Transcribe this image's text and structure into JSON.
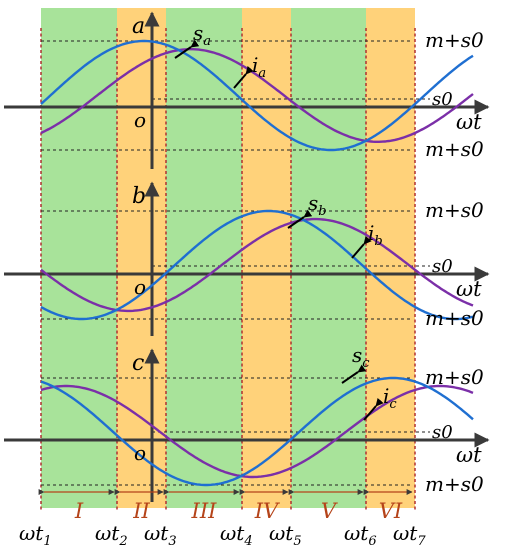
{
  "colors": {
    "green_band": "#a8e39a",
    "orange_band": "#ffd27a",
    "voltage_curve": "#1f6fd1",
    "current_curve": "#7b2fa8",
    "divider_line": "#b03030",
    "axis": "#3a3a3a",
    "roman_label": "#b5441a"
  },
  "panels": [
    {
      "axis_label": "a",
      "origin_label": "o",
      "x_axis_label": "ωt",
      "voltage_label": "s",
      "voltage_subscript": "a",
      "current_label": "i",
      "current_subscript": "a",
      "upper_level_label": "m+s0",
      "offset_label": "s0",
      "lower_level_label": "m+s0"
    },
    {
      "axis_label": "b",
      "origin_label": "o",
      "x_axis_label": "ωt",
      "voltage_label": "s",
      "voltage_subscript": "b",
      "current_label": "i",
      "current_subscript": "b",
      "upper_level_label": "m+s0",
      "offset_label": "s0",
      "lower_level_label": "m+s0"
    },
    {
      "axis_label": "c",
      "origin_label": "o",
      "x_axis_label": "ωt",
      "voltage_label": "s",
      "voltage_subscript": "c",
      "current_label": "i",
      "current_subscript": "c",
      "upper_level_label": "m+s0",
      "offset_label": "s0",
      "lower_level_label": "m+s0"
    }
  ],
  "sectors": [
    "I",
    "II",
    "III",
    "IV",
    "V",
    "VI"
  ],
  "time_marks": [
    {
      "base": "ωt",
      "sub": "1"
    },
    {
      "base": "ωt",
      "sub": "2"
    },
    {
      "base": "ωt",
      "sub": "3"
    },
    {
      "base": "ωt",
      "sub": "4"
    },
    {
      "base": "ωt",
      "sub": "5"
    },
    {
      "base": "ωt",
      "sub": "6"
    },
    {
      "base": "ωt",
      "sub": "7"
    }
  ]
}
